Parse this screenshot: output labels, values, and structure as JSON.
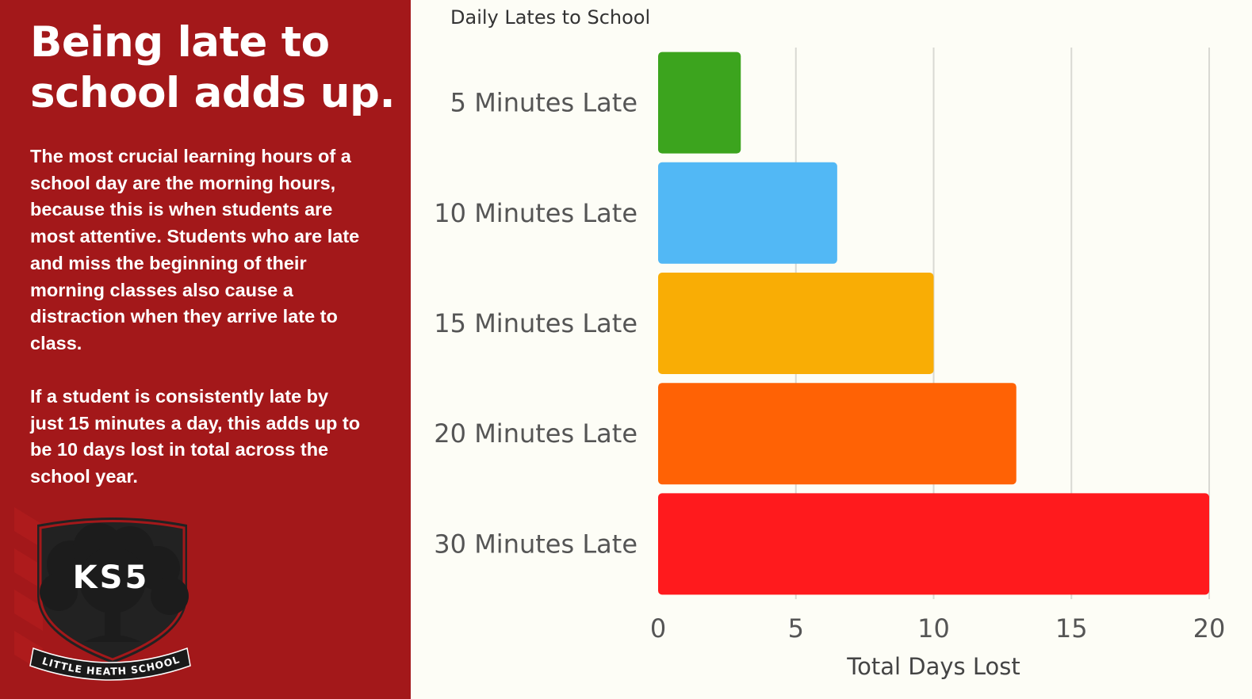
{
  "panel": {
    "headline": "Being late to school adds up.",
    "paragraph1": "The most crucial learning hours of a school day are the morning hours, because this is when students are most attentive. Students who are late and miss the beginning of their morning classes also cause a distraction when they arrive late to class.",
    "paragraph2": "If a student is consistently late by just 15 minutes a day, this adds up to be 10 days lost in total across the school year.",
    "background_color": "#a3181a"
  },
  "logo": {
    "badge_text": "KS5",
    "school_name": "LITTLE HEATH SCHOOL",
    "icon": "oak-tree-shield-icon"
  },
  "chart_data": {
    "type": "bar",
    "orientation": "horizontal",
    "title": "Daily Lates to School",
    "xlabel": "Total Days Lost",
    "ylabel": "",
    "categories": [
      "5 Minutes Late",
      "10 Minutes Late",
      "15 Minutes Late",
      "20 Minutes Late",
      "30 Minutes Late"
    ],
    "values": [
      3,
      6.5,
      10,
      13,
      20
    ],
    "colors": [
      "#3ca41e",
      "#52b8f5",
      "#f9ad05",
      "#ff6205",
      "#ff1a1d"
    ],
    "xlim": [
      0,
      20
    ],
    "xticks": [
      "0",
      "5",
      "10",
      "15",
      "20"
    ],
    "grid": true,
    "legend": "none"
  }
}
